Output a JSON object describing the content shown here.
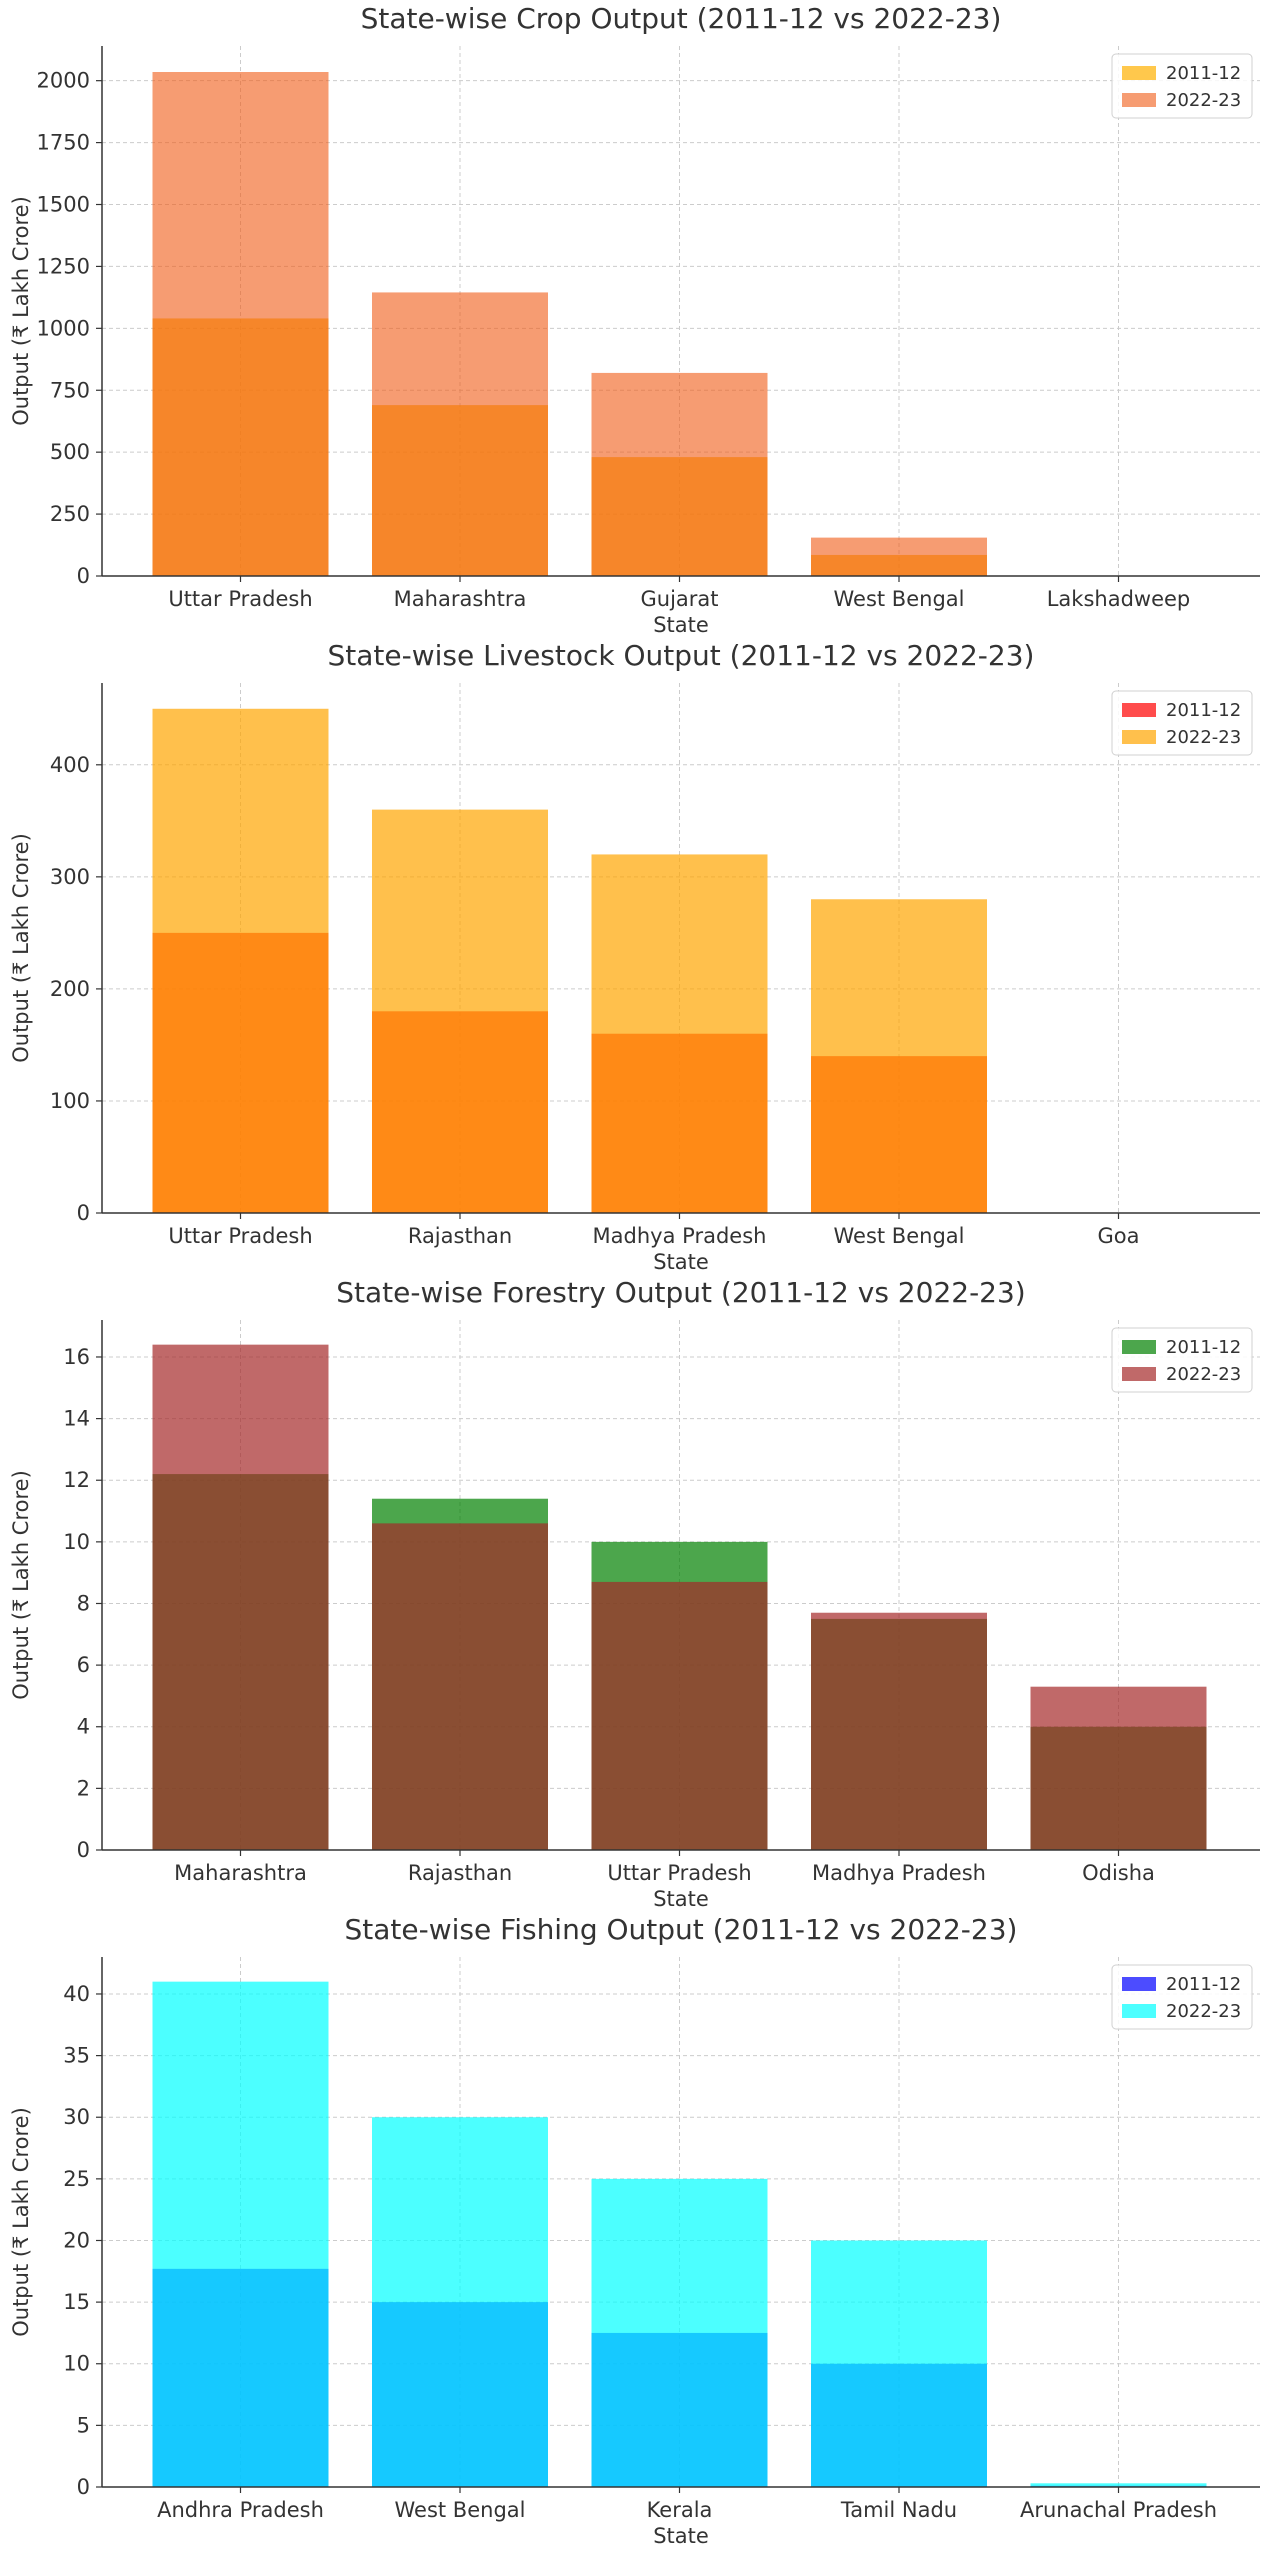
{
  "chart_data": [
    {
      "type": "bar",
      "title": "State-wise Crop Output (2011-12 vs 2022-23)",
      "xlabel": "State",
      "ylabel": "Output (₹ Lakh Crore)",
      "categories": [
        "Uttar Pradesh",
        "Maharashtra",
        "Gujarat",
        "West Bengal",
        "Lakshadweep"
      ],
      "ylim": [
        0,
        2140
      ],
      "yticks": [
        0,
        250,
        500,
        750,
        1000,
        1250,
        1500,
        1750,
        2000
      ],
      "ytick_labels": [
        "0",
        "250",
        "500",
        "750",
        "1000",
        "1250",
        "1500",
        "1750",
        "2000"
      ],
      "grid": true,
      "legend_position": "top-right",
      "series": [
        {
          "name": "2011-12",
          "values": [
            1040,
            690,
            480,
            85,
            0
          ],
          "color": "#FFB000",
          "opacity": 0.7
        },
        {
          "name": "2022-23",
          "values": [
            2035,
            1145,
            820,
            155,
            0
          ],
          "color": "#F05A14",
          "opacity": 0.6
        }
      ]
    },
    {
      "type": "bar",
      "title": "State-wise Livestock Output (2011-12 vs 2022-23)",
      "xlabel": "State",
      "ylabel": "Output (₹ Lakh Crore)",
      "categories": [
        "Uttar Pradesh",
        "Rajasthan",
        "Madhya Pradesh",
        "West Bengal",
        "Goa"
      ],
      "ylim": [
        0,
        473
      ],
      "yticks": [
        0,
        100,
        200,
        300,
        400
      ],
      "ytick_labels": [
        "0",
        "100",
        "200",
        "300",
        "400"
      ],
      "grid": true,
      "legend_position": "top-right",
      "series": [
        {
          "name": "2011-12",
          "values": [
            250,
            180,
            160,
            140,
            0
          ],
          "color": "#FF0000",
          "opacity": 0.7
        },
        {
          "name": "2022-23",
          "values": [
            450,
            360,
            320,
            280,
            0
          ],
          "color": "#FFA500",
          "opacity": 0.7
        }
      ]
    },
    {
      "type": "bar",
      "title": "State-wise Forestry Output (2011-12 vs 2022-23)",
      "xlabel": "State",
      "ylabel": "Output (₹ Lakh Crore)",
      "categories": [
        "Maharashtra",
        "Rajasthan",
        "Uttar Pradesh",
        "Madhya Pradesh",
        "Odisha"
      ],
      "ylim": [
        0,
        17.2
      ],
      "yticks": [
        0,
        2,
        4,
        6,
        8,
        10,
        12,
        14,
        16
      ],
      "ytick_labels": [
        "0",
        "2",
        "4",
        "6",
        "8",
        "10",
        "12",
        "14",
        "16"
      ],
      "grid": true,
      "legend_position": "top-right",
      "series": [
        {
          "name": "2011-12",
          "values": [
            12.2,
            11.4,
            10.0,
            7.5,
            4.0
          ],
          "color": "#008000",
          "opacity": 0.7
        },
        {
          "name": "2022-23",
          "values": [
            16.4,
            10.6,
            8.7,
            7.7,
            5.3
          ],
          "color": "#A52A2A",
          "opacity": 0.7
        }
      ]
    },
    {
      "type": "bar",
      "title": "State-wise Fishing Output (2011-12 vs 2022-23)",
      "xlabel": "State",
      "ylabel": "Output (₹ Lakh Crore)",
      "categories": [
        "Andhra Pradesh",
        "West Bengal",
        "Kerala",
        "Tamil Nadu",
        "Arunachal Pradesh"
      ],
      "ylim": [
        0,
        43
      ],
      "yticks": [
        0,
        5,
        10,
        15,
        20,
        25,
        30,
        35,
        40
      ],
      "ytick_labels": [
        "0",
        "5",
        "10",
        "15",
        "20",
        "25",
        "30",
        "35",
        "40"
      ],
      "grid": true,
      "legend_position": "top-right",
      "series": [
        {
          "name": "2011-12",
          "values": [
            17.7,
            15.0,
            12.5,
            10.0,
            0.1
          ],
          "color": "#0000FF",
          "opacity": 0.7
        },
        {
          "name": "2022-23",
          "values": [
            41.0,
            30.0,
            25.0,
            20.0,
            0.3
          ],
          "color": "#00FFFF",
          "opacity": 0.7
        }
      ]
    }
  ]
}
